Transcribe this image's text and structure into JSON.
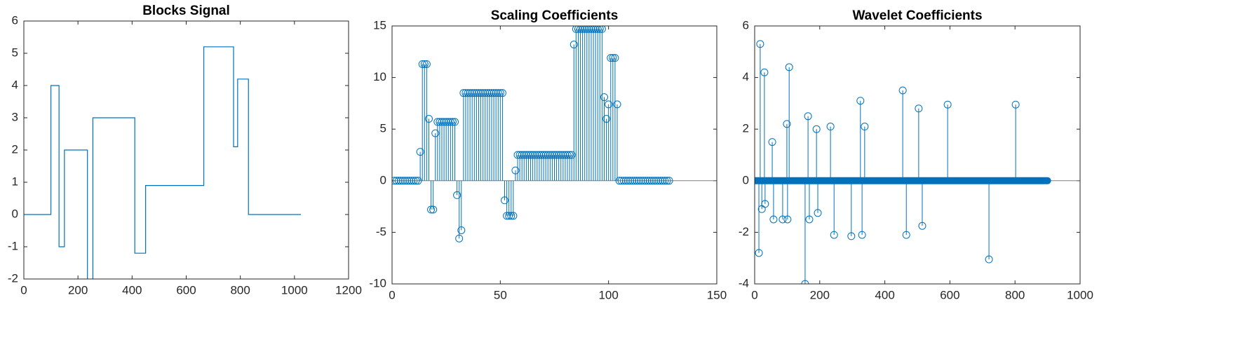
{
  "chart_data": [
    {
      "type": "line",
      "title": "Blocks Signal",
      "color": "#0072bd",
      "x": [
        0,
        100,
        100,
        130,
        130,
        150,
        150,
        235,
        235,
        255,
        255,
        410,
        410,
        450,
        450,
        665,
        665,
        775,
        775,
        790,
        790,
        830,
        830,
        1024
      ],
      "values": [
        0,
        0,
        4,
        4,
        -1,
        -1,
        2,
        2,
        -3.5,
        -3.5,
        3,
        3,
        -1.2,
        -1.2,
        0.9,
        0.9,
        5.2,
        5.2,
        2.1,
        2.1,
        4.2,
        4.2,
        0,
        0
      ],
      "xlim": [
        0,
        1200
      ],
      "xticks": [
        0,
        200,
        400,
        600,
        800,
        1000,
        1200
      ],
      "ylim": [
        -2,
        6
      ],
      "yticks": [
        -2,
        -1,
        0,
        1,
        2,
        3,
        4,
        5,
        6
      ]
    },
    {
      "type": "stem",
      "title": "Scaling Coefficients",
      "color": "#0072bd",
      "values": [
        0,
        0,
        0,
        0,
        0,
        0,
        0,
        0,
        0,
        0,
        0,
        0,
        2.8,
        11.3,
        11.3,
        11.3,
        6.0,
        -2.8,
        -2.8,
        4.6,
        5.7,
        5.7,
        5.7,
        5.7,
        5.7,
        5.7,
        5.7,
        5.7,
        5.7,
        -1.4,
        -5.6,
        -4.8,
        8.5,
        8.5,
        8.5,
        8.5,
        8.5,
        8.5,
        8.5,
        8.5,
        8.5,
        8.5,
        8.5,
        8.5,
        8.5,
        8.5,
        8.5,
        8.5,
        8.5,
        8.5,
        8.5,
        -1.9,
        -3.4,
        -3.4,
        -3.4,
        -3.4,
        1.0,
        2.5,
        2.5,
        2.5,
        2.5,
        2.5,
        2.5,
        2.5,
        2.5,
        2.5,
        2.5,
        2.5,
        2.5,
        2.5,
        2.5,
        2.5,
        2.5,
        2.5,
        2.5,
        2.5,
        2.5,
        2.5,
        2.5,
        2.5,
        2.5,
        2.5,
        2.5,
        13.2,
        14.7,
        14.7,
        14.7,
        14.7,
        14.7,
        14.7,
        14.7,
        14.7,
        14.7,
        14.7,
        14.7,
        14.7,
        14.7,
        8.1,
        6.0,
        7.4,
        11.9,
        11.9,
        11.9,
        7.4,
        0,
        0,
        0,
        0,
        0,
        0,
        0,
        0,
        0,
        0,
        0,
        0,
        0,
        0,
        0,
        0,
        0,
        0,
        0,
        0,
        0,
        0,
        0,
        0
      ],
      "xlim": [
        0,
        150
      ],
      "xticks": [
        0,
        50,
        100,
        150
      ],
      "ylim": [
        -10,
        15
      ],
      "yticks": [
        -10,
        -5,
        0,
        5,
        10,
        15
      ]
    },
    {
      "type": "stem",
      "title": "Wavelet Coefficients",
      "color": "#0072bd",
      "x": [
        13,
        17,
        22,
        30,
        32,
        54,
        58,
        86,
        99,
        101,
        106,
        155,
        164,
        168,
        190,
        194,
        233,
        244,
        297,
        325,
        330,
        338,
        455,
        466,
        504,
        515,
        593,
        720,
        802
      ],
      "values": [
        -2.8,
        5.3,
        -1.1,
        4.2,
        -0.9,
        1.5,
        -1.5,
        -1.5,
        2.2,
        -1.5,
        4.4,
        -4.0,
        2.5,
        -1.5,
        2.0,
        -1.25,
        2.1,
        -2.1,
        -2.15,
        3.1,
        -2.1,
        2.1,
        3.5,
        -2.1,
        2.8,
        -1.75,
        2.95,
        -3.05,
        2.95
      ],
      "xlim": [
        0,
        1000
      ],
      "xticks": [
        0,
        200,
        400,
        600,
        800,
        1000
      ],
      "ylim": [
        -4,
        6
      ],
      "yticks": [
        -4,
        -2,
        0,
        2,
        4,
        6
      ]
    }
  ]
}
